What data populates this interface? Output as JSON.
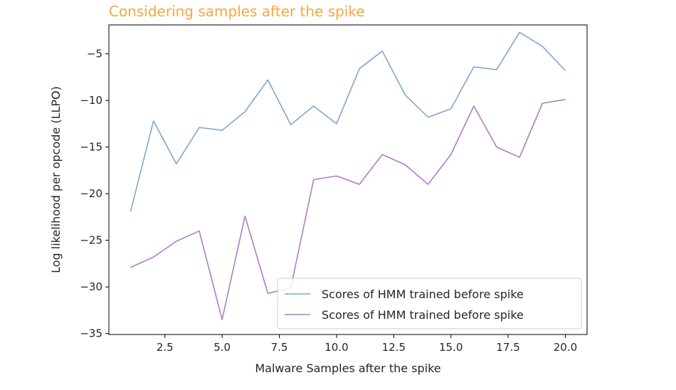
{
  "chart_data": {
    "type": "line",
    "title": "Considering samples after the spike",
    "title_color": "#f5a742",
    "xlabel": "Malware Samples after the spike",
    "ylabel": "Log likelihood per opcode (LLPO)",
    "xlim": [
      0.05,
      20.95
    ],
    "ylim": [
      -35.1,
      -1.9
    ],
    "xticks": [
      2.5,
      5.0,
      7.5,
      10.0,
      12.5,
      15.0,
      17.5,
      20.0
    ],
    "xtick_labels": [
      "2.5",
      "5.0",
      "7.5",
      "10.0",
      "12.5",
      "15.0",
      "17.5",
      "20.0"
    ],
    "yticks": [
      -5,
      -10,
      -15,
      -20,
      -25,
      -30,
      -35
    ],
    "ytick_labels": [
      "−5",
      "−10",
      "−15",
      "−20",
      "−25",
      "−30",
      "−35"
    ],
    "grid": false,
    "legend_position": "lower-right",
    "x": [
      1,
      2,
      3,
      4,
      5,
      6,
      7,
      8,
      9,
      10,
      11,
      12,
      13,
      14,
      15,
      16,
      17,
      18,
      19,
      20
    ],
    "series": [
      {
        "name": "Scores of HMM trained before spike",
        "color": "#7ea6d0",
        "values": [
          -21.9,
          -12.2,
          -16.8,
          -12.9,
          -13.2,
          -11.2,
          -7.8,
          -12.6,
          -10.6,
          -12.5,
          -6.6,
          -4.7,
          -9.4,
          -11.8,
          -10.9,
          -6.4,
          -6.7,
          -2.7,
          -4.2,
          -6.8
        ]
      },
      {
        "name": "Scores of HMM trained before spike",
        "color": "#b07cc6",
        "values": [
          -27.9,
          -26.8,
          -25.1,
          -24.0,
          -33.5,
          -22.4,
          -30.7,
          -30.1,
          -18.5,
          -18.1,
          -19.0,
          -15.8,
          -16.9,
          -19.0,
          -15.8,
          -10.6,
          -15.0,
          -16.1,
          -10.3,
          -9.9
        ]
      }
    ]
  }
}
